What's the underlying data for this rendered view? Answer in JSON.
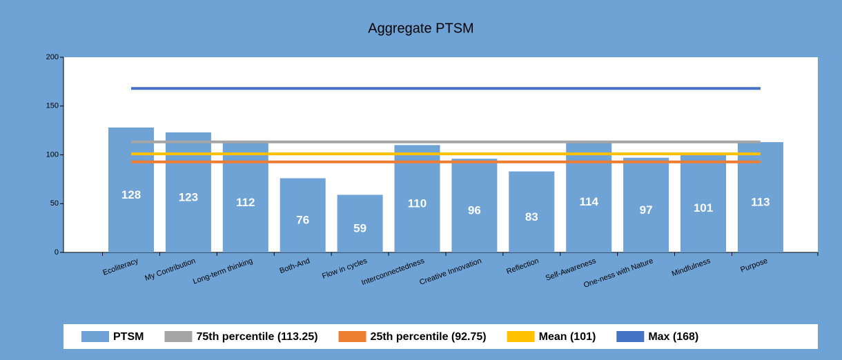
{
  "chart_data": {
    "type": "bar",
    "title": "Aggregate PTSM",
    "categories": [
      "Ecoliteracy",
      "My Contribution",
      "Long-term thinking",
      "Both-And",
      "Flow in cycles",
      "Interconnectedness",
      "Creative Innovation",
      "Reflection",
      "Self-Awareness",
      "One-ness with Nature",
      "Mindfulness",
      "Purpose"
    ],
    "series": [
      {
        "name": "PTSM",
        "color": "#6fa3d6",
        "values": [
          128,
          123,
          112,
          76,
          59,
          110,
          96,
          83,
          114,
          97,
          101,
          113
        ]
      }
    ],
    "reference_lines": [
      {
        "name": "75th percentile (113.25)",
        "color": "#a5a5a5",
        "value": 113.25
      },
      {
        "name": "25th percentile (92.75)",
        "color": "#ed7d31",
        "value": 92.75
      },
      {
        "name": "Mean (101)",
        "color": "#ffc000",
        "value": 101
      },
      {
        "name": "Max (168)",
        "color": "#4472c4",
        "value": 168
      }
    ],
    "ylim": [
      0,
      200
    ],
    "yticks": [
      0,
      50,
      100,
      150,
      200
    ]
  }
}
